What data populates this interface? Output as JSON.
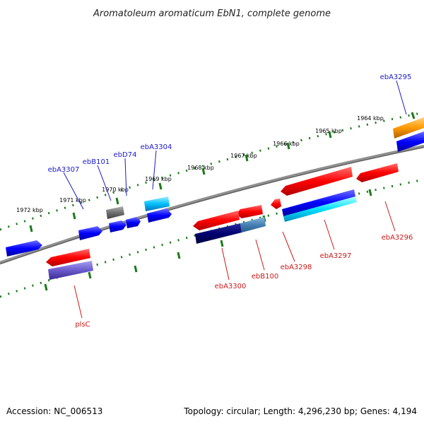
{
  "title": "Aromatoleum aromaticum EbN1, complete genome",
  "accession": "Accession: NC_006513",
  "summary": "Topology: circular; Length: 4,296,230 bp; Genes: 4,194",
  "colors": {
    "backbone": "#808080",
    "tick": "#1a7a1a",
    "label_forward": "#1a1acc",
    "label_reverse": "#cc1a1a"
  },
  "kbp_labels": [
    "1964 kbp",
    "1965 kbp",
    "1966 kbp",
    "1967 kbp",
    "1968 kbp",
    "1969 kbp",
    "1970 kbp",
    "1971 kbp",
    "1972 kbp"
  ],
  "gene_labels": {
    "forward": [
      "ebA3295",
      "ebA3304",
      "ebD74",
      "ebB101",
      "ebA3307"
    ],
    "reverse": [
      "ebA3296",
      "ebA3297",
      "ebA3298",
      "ebB100",
      "ebA3300",
      "plsC"
    ]
  }
}
